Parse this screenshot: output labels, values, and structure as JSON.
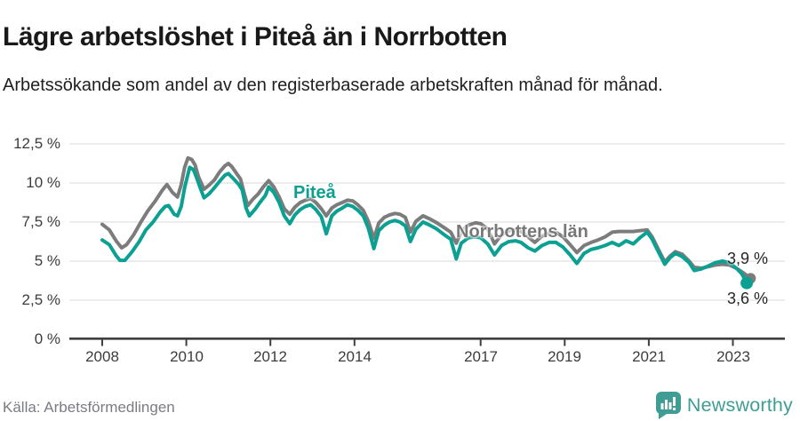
{
  "header": {
    "title": "Lägre arbetslöshet i Piteå än i Norrbotten",
    "subtitle": "Arbetssökande som andel av den registerbaserade arbetskraften månad för månad."
  },
  "footer": {
    "source": "Källa: Arbetsförmedlingen",
    "brand": "Newsworthy"
  },
  "colors": {
    "piteaa": "#0ca093",
    "norrbotten": "#7c7c7c",
    "axis": "#3f3f3f",
    "grid": "#e1e1e1",
    "brand_teal": "#3f9d95"
  },
  "chart_data": {
    "type": "line",
    "title": "Lägre arbetslöshet i Piteå än i Norrbotten",
    "xlabel": "",
    "ylabel": "Arbetssökande som andel av den registerbaserade arbetskraften",
    "unit": "%",
    "grid": true,
    "legend_position": "inline",
    "xlim": [
      2007.2,
      2024.2
    ],
    "ylim": [
      0,
      12.5
    ],
    "x_ticks": [
      {
        "label": "2008",
        "year": 2008
      },
      {
        "label": "2010",
        "year": 2010
      },
      {
        "label": "2012",
        "year": 2012
      },
      {
        "label": "2014",
        "year": 2014
      },
      {
        "label": "2017",
        "year": 2017
      },
      {
        "label": "2019",
        "year": 2019
      },
      {
        "label": "2021",
        "year": 2021
      },
      {
        "label": "2023",
        "year": 2023
      }
    ],
    "y_ticks": [
      {
        "label": "12,5 %",
        "value": 12.5
      },
      {
        "label": "10 %",
        "value": 10
      },
      {
        "label": "7,5 %",
        "value": 7.5
      },
      {
        "label": "5 %",
        "value": 5
      },
      {
        "label": "2,5 %",
        "value": 2.5
      },
      {
        "label": "0 %",
        "value": 0
      }
    ],
    "series": [
      {
        "name": "Norrbottens län",
        "color": "#7c7c7c",
        "end_label": "3,9 %",
        "end_value": 3.9,
        "dot_radius": 6,
        "stroke_width": 4,
        "points": [
          [
            2008.0,
            7.35
          ],
          [
            2008.17,
            7.0
          ],
          [
            2008.33,
            6.3
          ],
          [
            2008.46,
            5.85
          ],
          [
            2008.58,
            6.05
          ],
          [
            2008.75,
            6.7
          ],
          [
            2008.92,
            7.5
          ],
          [
            2009.08,
            8.2
          ],
          [
            2009.25,
            8.8
          ],
          [
            2009.42,
            9.5
          ],
          [
            2009.54,
            9.9
          ],
          [
            2009.67,
            9.4
          ],
          [
            2009.79,
            9.1
          ],
          [
            2009.88,
            9.9
          ],
          [
            2009.96,
            11.0
          ],
          [
            2010.04,
            11.6
          ],
          [
            2010.13,
            11.5
          ],
          [
            2010.21,
            11.15
          ],
          [
            2010.29,
            10.4
          ],
          [
            2010.42,
            9.6
          ],
          [
            2010.54,
            9.85
          ],
          [
            2010.67,
            10.2
          ],
          [
            2010.79,
            10.7
          ],
          [
            2010.92,
            11.1
          ],
          [
            2011.0,
            11.25
          ],
          [
            2011.08,
            11.05
          ],
          [
            2011.21,
            10.55
          ],
          [
            2011.29,
            10.25
          ],
          [
            2011.38,
            9.3
          ],
          [
            2011.46,
            8.55
          ],
          [
            2011.58,
            8.95
          ],
          [
            2011.71,
            9.3
          ],
          [
            2011.83,
            9.75
          ],
          [
            2011.96,
            10.15
          ],
          [
            2012.08,
            9.75
          ],
          [
            2012.21,
            9.1
          ],
          [
            2012.33,
            8.35
          ],
          [
            2012.46,
            8.0
          ],
          [
            2012.58,
            8.45
          ],
          [
            2012.71,
            8.75
          ],
          [
            2012.83,
            8.9
          ],
          [
            2012.96,
            9.0
          ],
          [
            2013.08,
            8.75
          ],
          [
            2013.21,
            8.35
          ],
          [
            2013.33,
            7.9
          ],
          [
            2013.46,
            8.4
          ],
          [
            2013.58,
            8.6
          ],
          [
            2013.71,
            8.75
          ],
          [
            2013.83,
            8.9
          ],
          [
            2013.96,
            8.85
          ],
          [
            2014.08,
            8.6
          ],
          [
            2014.21,
            8.25
          ],
          [
            2014.33,
            7.55
          ],
          [
            2014.46,
            6.45
          ],
          [
            2014.58,
            7.45
          ],
          [
            2014.71,
            7.8
          ],
          [
            2014.83,
            7.95
          ],
          [
            2014.96,
            8.05
          ],
          [
            2015.08,
            8.0
          ],
          [
            2015.21,
            7.8
          ],
          [
            2015.33,
            6.85
          ],
          [
            2015.46,
            7.55
          ],
          [
            2015.63,
            7.9
          ],
          [
            2015.79,
            7.7
          ],
          [
            2015.96,
            7.45
          ],
          [
            2016.13,
            7.15
          ],
          [
            2016.29,
            6.85
          ],
          [
            2016.42,
            6.15
          ],
          [
            2016.54,
            6.9
          ],
          [
            2016.71,
            7.3
          ],
          [
            2016.88,
            7.45
          ],
          [
            2017.0,
            7.4
          ],
          [
            2017.17,
            7.05
          ],
          [
            2017.33,
            6.1
          ],
          [
            2017.5,
            6.7
          ],
          [
            2017.67,
            6.95
          ],
          [
            2017.83,
            7.0
          ],
          [
            2017.96,
            6.9
          ],
          [
            2018.13,
            6.55
          ],
          [
            2018.29,
            6.2
          ],
          [
            2018.46,
            6.6
          ],
          [
            2018.63,
            6.8
          ],
          [
            2018.79,
            6.85
          ],
          [
            2018.96,
            6.55
          ],
          [
            2019.13,
            6.05
          ],
          [
            2019.29,
            5.55
          ],
          [
            2019.46,
            6.0
          ],
          [
            2019.63,
            6.2
          ],
          [
            2019.79,
            6.35
          ],
          [
            2019.96,
            6.55
          ],
          [
            2020.13,
            6.85
          ],
          [
            2020.29,
            6.9
          ],
          [
            2020.46,
            6.9
          ],
          [
            2020.63,
            6.9
          ],
          [
            2020.79,
            6.95
          ],
          [
            2020.96,
            7.0
          ],
          [
            2021.08,
            6.55
          ],
          [
            2021.21,
            5.85
          ],
          [
            2021.38,
            4.95
          ],
          [
            2021.5,
            5.3
          ],
          [
            2021.63,
            5.6
          ],
          [
            2021.79,
            5.45
          ],
          [
            2021.96,
            5.0
          ],
          [
            2022.08,
            4.6
          ],
          [
            2022.25,
            4.55
          ],
          [
            2022.42,
            4.65
          ],
          [
            2022.58,
            4.75
          ],
          [
            2022.75,
            4.8
          ],
          [
            2022.92,
            4.75
          ],
          [
            2023.08,
            4.55
          ],
          [
            2023.25,
            4.25
          ],
          [
            2023.42,
            3.9
          ]
        ]
      },
      {
        "name": "Piteå",
        "color": "#0ca093",
        "end_label": "3,6 %",
        "end_value": 3.6,
        "dot_radius": 7,
        "stroke_width": 4,
        "points": [
          [
            2008.0,
            6.35
          ],
          [
            2008.17,
            6.05
          ],
          [
            2008.33,
            5.35
          ],
          [
            2008.42,
            5.05
          ],
          [
            2008.54,
            5.05
          ],
          [
            2008.71,
            5.6
          ],
          [
            2008.88,
            6.25
          ],
          [
            2009.04,
            7.0
          ],
          [
            2009.21,
            7.5
          ],
          [
            2009.38,
            8.15
          ],
          [
            2009.5,
            8.5
          ],
          [
            2009.58,
            8.55
          ],
          [
            2009.71,
            8.0
          ],
          [
            2009.79,
            7.9
          ],
          [
            2009.88,
            8.5
          ],
          [
            2009.96,
            9.7
          ],
          [
            2010.08,
            11.0
          ],
          [
            2010.17,
            10.85
          ],
          [
            2010.25,
            10.3
          ],
          [
            2010.33,
            9.7
          ],
          [
            2010.42,
            9.05
          ],
          [
            2010.54,
            9.3
          ],
          [
            2010.67,
            9.7
          ],
          [
            2010.79,
            10.1
          ],
          [
            2010.92,
            10.5
          ],
          [
            2011.0,
            10.6
          ],
          [
            2011.13,
            10.25
          ],
          [
            2011.25,
            9.9
          ],
          [
            2011.33,
            9.55
          ],
          [
            2011.42,
            8.4
          ],
          [
            2011.5,
            7.9
          ],
          [
            2011.63,
            8.3
          ],
          [
            2011.75,
            8.75
          ],
          [
            2011.88,
            9.2
          ],
          [
            2011.96,
            9.75
          ],
          [
            2012.08,
            9.4
          ],
          [
            2012.21,
            8.75
          ],
          [
            2012.33,
            7.9
          ],
          [
            2012.46,
            7.4
          ],
          [
            2012.58,
            7.95
          ],
          [
            2012.71,
            8.3
          ],
          [
            2012.83,
            8.5
          ],
          [
            2012.96,
            8.6
          ],
          [
            2013.08,
            8.3
          ],
          [
            2013.21,
            7.85
          ],
          [
            2013.33,
            6.75
          ],
          [
            2013.46,
            7.9
          ],
          [
            2013.58,
            8.2
          ],
          [
            2013.71,
            8.4
          ],
          [
            2013.83,
            8.6
          ],
          [
            2013.96,
            8.5
          ],
          [
            2014.08,
            8.25
          ],
          [
            2014.21,
            7.9
          ],
          [
            2014.33,
            7.1
          ],
          [
            2014.46,
            5.8
          ],
          [
            2014.58,
            6.95
          ],
          [
            2014.71,
            7.3
          ],
          [
            2014.83,
            7.5
          ],
          [
            2014.96,
            7.6
          ],
          [
            2015.08,
            7.5
          ],
          [
            2015.21,
            7.25
          ],
          [
            2015.33,
            6.25
          ],
          [
            2015.46,
            7.05
          ],
          [
            2015.63,
            7.5
          ],
          [
            2015.79,
            7.3
          ],
          [
            2015.96,
            7.05
          ],
          [
            2016.13,
            6.7
          ],
          [
            2016.29,
            6.4
          ],
          [
            2016.42,
            5.15
          ],
          [
            2016.54,
            6.15
          ],
          [
            2016.71,
            6.5
          ],
          [
            2016.88,
            6.55
          ],
          [
            2017.0,
            6.5
          ],
          [
            2017.17,
            6.1
          ],
          [
            2017.33,
            5.4
          ],
          [
            2017.5,
            6.0
          ],
          [
            2017.67,
            6.25
          ],
          [
            2017.83,
            6.3
          ],
          [
            2017.96,
            6.2
          ],
          [
            2018.13,
            5.85
          ],
          [
            2018.29,
            5.65
          ],
          [
            2018.46,
            6.0
          ],
          [
            2018.63,
            6.2
          ],
          [
            2018.79,
            6.2
          ],
          [
            2018.96,
            5.9
          ],
          [
            2019.13,
            5.4
          ],
          [
            2019.29,
            4.85
          ],
          [
            2019.46,
            5.5
          ],
          [
            2019.63,
            5.75
          ],
          [
            2019.79,
            5.85
          ],
          [
            2019.96,
            6.0
          ],
          [
            2020.13,
            6.2
          ],
          [
            2020.29,
            6.0
          ],
          [
            2020.46,
            6.3
          ],
          [
            2020.63,
            6.1
          ],
          [
            2020.79,
            6.5
          ],
          [
            2020.96,
            6.85
          ],
          [
            2021.08,
            6.4
          ],
          [
            2021.21,
            5.7
          ],
          [
            2021.38,
            4.8
          ],
          [
            2021.5,
            5.2
          ],
          [
            2021.63,
            5.5
          ],
          [
            2021.79,
            5.3
          ],
          [
            2021.96,
            4.9
          ],
          [
            2022.08,
            4.4
          ],
          [
            2022.25,
            4.5
          ],
          [
            2022.42,
            4.7
          ],
          [
            2022.58,
            4.9
          ],
          [
            2022.75,
            5.0
          ],
          [
            2022.92,
            4.9
          ],
          [
            2023.08,
            4.55
          ],
          [
            2023.21,
            4.2
          ],
          [
            2023.33,
            3.6
          ]
        ]
      }
    ]
  }
}
